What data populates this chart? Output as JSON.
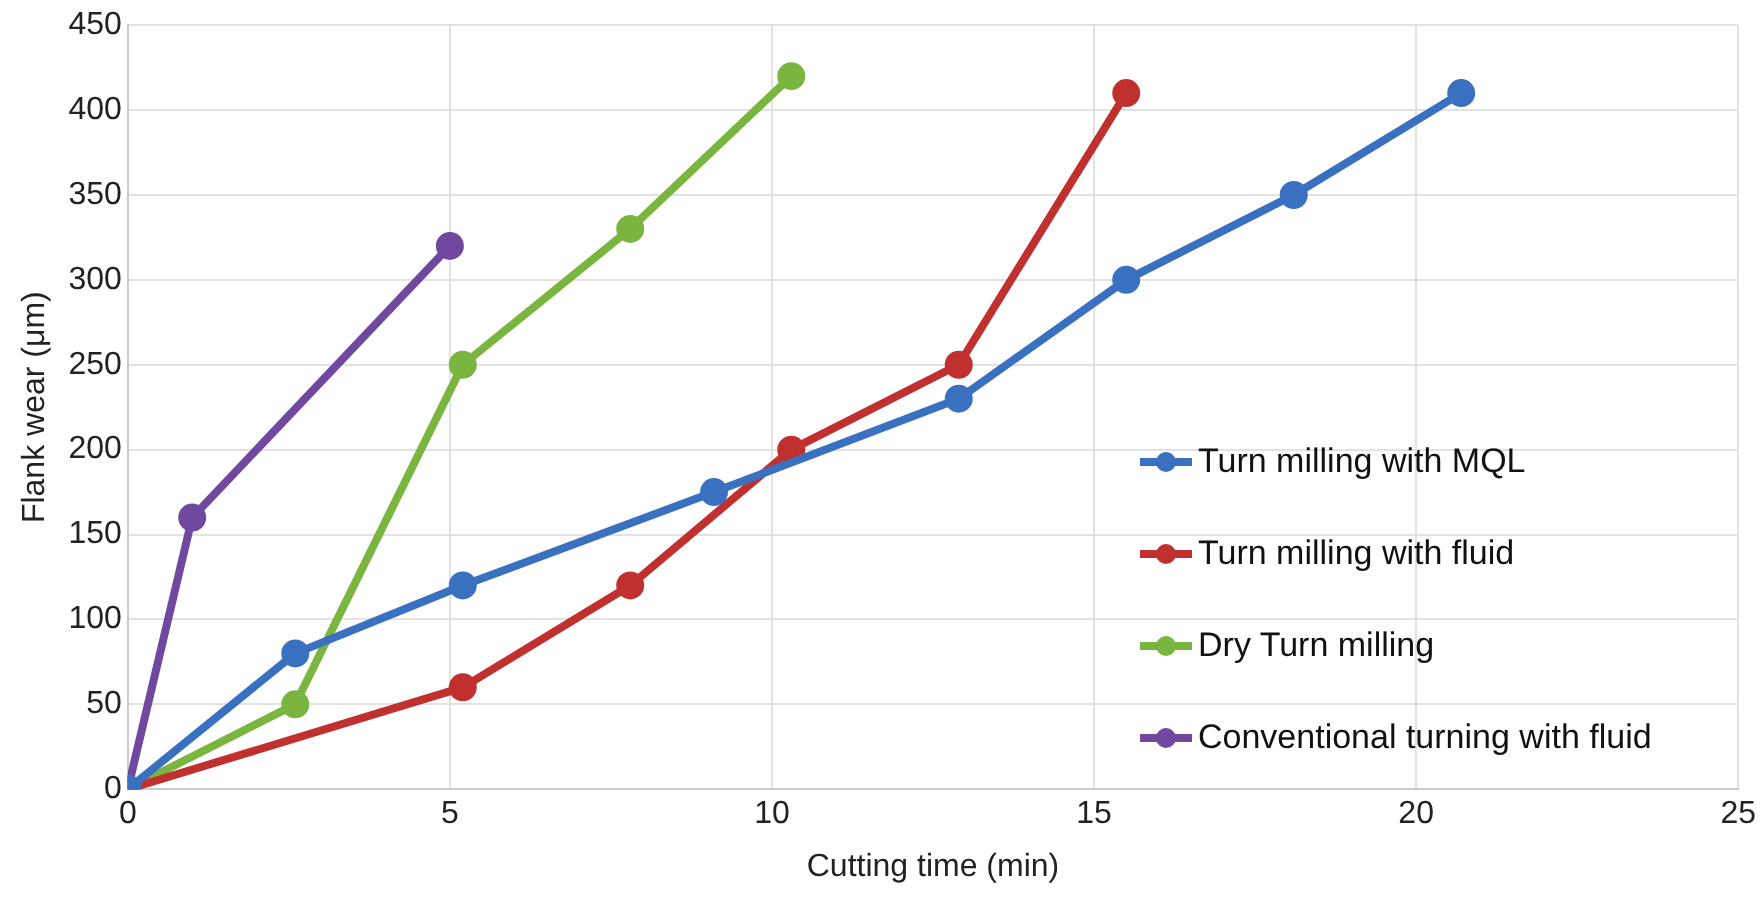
{
  "chart_data": {
    "type": "line",
    "xlabel": "Cutting time (min)",
    "ylabel": "Flank wear (μm)",
    "xlim": [
      0,
      25
    ],
    "xticks": [
      0,
      5,
      10,
      15,
      20,
      25
    ],
    "ylim": [
      0,
      450
    ],
    "yticks": [
      0,
      50,
      100,
      150,
      200,
      250,
      300,
      350,
      400,
      450
    ],
    "grid": true,
    "legend": "right",
    "marker": "circle",
    "line_style": "solid",
    "series": [
      {
        "name": "Turn milling with MQL",
        "color": "#3a70c0",
        "x": [
          0,
          2.6,
          5.2,
          9.1,
          12.9,
          15.5,
          18.1,
          20.7
        ],
        "values": [
          0,
          80,
          120,
          175,
          230,
          300,
          350,
          410
        ]
      },
      {
        "name": "Turn milling with fluid",
        "color": "#c0302f",
        "x": [
          0,
          5.2,
          7.8,
          10.3,
          12.9,
          15.5
        ],
        "values": [
          0,
          60,
          120,
          200,
          250,
          410
        ]
      },
      {
        "name": "Dry Turn milling",
        "color": "#7ab540",
        "x": [
          0,
          2.6,
          5.2,
          7.8,
          10.3
        ],
        "values": [
          0,
          50,
          250,
          330,
          420
        ]
      },
      {
        "name": "Conventional turning with fluid",
        "color": "#7048a0",
        "x": [
          0,
          1,
          5
        ],
        "values": [
          0,
          160,
          320
        ]
      }
    ]
  }
}
